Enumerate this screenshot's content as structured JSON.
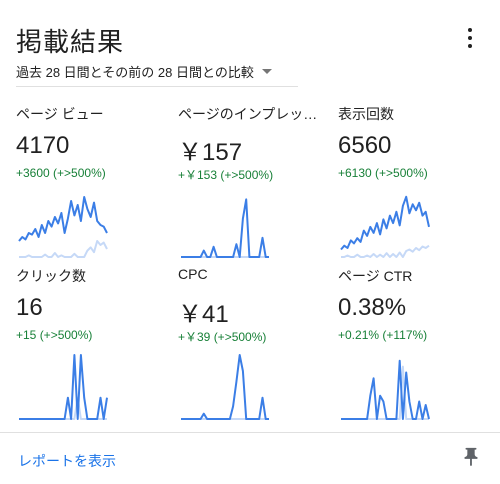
{
  "header": {
    "title": "掲載結果",
    "menu_icon": "more-vert-icon",
    "period_label": "過去 28 日間とその前の 28 日間との比較",
    "caret_icon": "dropdown-caret-icon"
  },
  "colors": {
    "current": "#3b7ee6",
    "previous": "#c6d9f7",
    "delta_positive": "#188038",
    "link": "#1a73e8"
  },
  "metrics": [
    {
      "id": "pageviews",
      "label": "ページ ビュー",
      "value": "4170",
      "delta": "+3600 (+>500%)"
    },
    {
      "id": "impressions_page",
      "label": "ページのインプレッ…",
      "value": "￥157",
      "delta": "+￥153 (+>500%)"
    },
    {
      "id": "impressions",
      "label": "表示回数",
      "value": "6560",
      "delta": "+6130 (+>500%)"
    },
    {
      "id": "clicks",
      "label": "クリック数",
      "value": "16",
      "delta": "+15 (+>500%)"
    },
    {
      "id": "cpc",
      "label": "CPC",
      "value": "￥41",
      "delta": "+￥39 (+>500%)"
    },
    {
      "id": "ctr",
      "label": "ページ CTR",
      "value": "0.38%",
      "delta": "+0.21% (+117%)"
    }
  ],
  "chart_data": [
    {
      "type": "line",
      "title": "",
      "x": [
        1,
        2,
        3,
        4,
        5,
        6,
        7,
        8,
        9,
        10,
        11,
        12,
        13,
        14,
        15,
        16,
        17,
        18,
        19,
        20,
        21,
        22,
        23,
        24,
        25,
        26,
        27,
        28
      ],
      "series": [
        {
          "values": [
            20,
            25,
            22,
            30,
            28,
            35,
            25,
            40,
            30,
            45,
            38,
            50,
            42,
            55,
            30,
            48,
            70,
            52,
            65,
            45,
            75,
            60,
            50,
            68,
            45,
            40,
            38,
            30
          ]
        },
        {
          "values": [
            0,
            0,
            0,
            2,
            0,
            0,
            0,
            0,
            3,
            0,
            0,
            5,
            0,
            2,
            0,
            0,
            0,
            4,
            0,
            0,
            0,
            8,
            12,
            6,
            20,
            15,
            18,
            10
          ]
        }
      ],
      "ylim": [
        0,
        80
      ]
    },
    {
      "type": "line",
      "title": "",
      "x": [
        1,
        2,
        3,
        4,
        5,
        6,
        7,
        8,
        9,
        10,
        11,
        12,
        13,
        14,
        15,
        16,
        17,
        18,
        19,
        20,
        21,
        22,
        23,
        24,
        25,
        26,
        27,
        28
      ],
      "series": [
        {
          "values": [
            0,
            0,
            0,
            0,
            0,
            0,
            0,
            5,
            0,
            0,
            8,
            0,
            0,
            0,
            0,
            0,
            0,
            10,
            0,
            30,
            45,
            0,
            0,
            0,
            0,
            15,
            0,
            0
          ]
        },
        {
          "values": [
            0,
            0,
            0,
            0,
            0,
            0,
            0,
            0,
            0,
            0,
            0,
            0,
            0,
            0,
            0,
            0,
            0,
            0,
            0,
            0,
            0,
            0,
            0,
            0,
            0,
            0,
            0,
            0
          ]
        }
      ],
      "ylim": [
        0,
        50
      ]
    },
    {
      "type": "line",
      "title": "",
      "x": [
        1,
        2,
        3,
        4,
        5,
        6,
        7,
        8,
        9,
        10,
        11,
        12,
        13,
        14,
        15,
        16,
        17,
        18,
        19,
        20,
        21,
        22,
        23,
        24,
        25,
        26,
        27,
        28
      ],
      "series": [
        {
          "values": [
            10,
            15,
            12,
            22,
            18,
            25,
            20,
            35,
            28,
            40,
            32,
            45,
            30,
            50,
            38,
            55,
            45,
            60,
            42,
            68,
            80,
            58,
            70,
            62,
            72,
            55,
            60,
            40
          ]
        },
        {
          "values": [
            0,
            0,
            2,
            0,
            0,
            3,
            0,
            0,
            2,
            0,
            4,
            0,
            3,
            0,
            5,
            0,
            4,
            0,
            6,
            0,
            8,
            10,
            7,
            12,
            9,
            14,
            12,
            15
          ]
        }
      ],
      "ylim": [
        0,
        85
      ]
    },
    {
      "type": "line",
      "title": "",
      "x": [
        1,
        2,
        3,
        4,
        5,
        6,
        7,
        8,
        9,
        10,
        11,
        12,
        13,
        14,
        15,
        16,
        17,
        18,
        19,
        20,
        21,
        22,
        23,
        24,
        25,
        26,
        27,
        28
      ],
      "series": [
        {
          "values": [
            0,
            0,
            0,
            0,
            0,
            0,
            0,
            0,
            0,
            0,
            0,
            0,
            0,
            0,
            0,
            1,
            0,
            3,
            0,
            3,
            1,
            0,
            0,
            0,
            0,
            1,
            0,
            1
          ]
        },
        {
          "values": [
            0,
            0,
            0,
            0,
            0,
            0,
            0,
            0,
            0,
            0,
            0,
            0,
            0,
            0,
            0,
            0,
            0,
            0,
            1,
            0,
            0,
            0,
            0,
            0,
            0,
            0,
            0,
            0
          ]
        }
      ],
      "ylim": [
        0,
        3
      ]
    },
    {
      "type": "line",
      "title": "",
      "x": [
        1,
        2,
        3,
        4,
        5,
        6,
        7,
        8,
        9,
        10,
        11,
        12,
        13,
        14,
        15,
        16,
        17,
        18,
        19,
        20,
        21,
        22,
        23,
        24,
        25,
        26,
        27,
        28
      ],
      "series": [
        {
          "values": [
            0,
            0,
            0,
            0,
            0,
            0,
            0,
            5,
            0,
            0,
            0,
            0,
            0,
            0,
            0,
            0,
            12,
            35,
            60,
            45,
            0,
            0,
            0,
            0,
            0,
            20,
            0,
            0
          ]
        },
        {
          "values": [
            0,
            0,
            0,
            0,
            0,
            0,
            0,
            0,
            0,
            0,
            0,
            0,
            0,
            0,
            0,
            0,
            0,
            0,
            0,
            0,
            0,
            0,
            0,
            0,
            0,
            0,
            0,
            0
          ]
        }
      ],
      "ylim": [
        0,
        60
      ]
    },
    {
      "type": "line",
      "title": "",
      "x": [
        1,
        2,
        3,
        4,
        5,
        6,
        7,
        8,
        9,
        10,
        11,
        12,
        13,
        14,
        15,
        16,
        17,
        18,
        19,
        20,
        21,
        22,
        23,
        24,
        25,
        26,
        27,
        28
      ],
      "series": [
        {
          "values": [
            0,
            0,
            0,
            0,
            0,
            0,
            0,
            0,
            0,
            20,
            35,
            0,
            20,
            15,
            0,
            0,
            0,
            0,
            50,
            0,
            40,
            15,
            0,
            0,
            15,
            0,
            12,
            0
          ]
        },
        {
          "values": [
            0,
            0,
            0,
            0,
            0,
            0,
            0,
            0,
            0,
            0,
            0,
            0,
            0,
            0,
            0,
            0,
            0,
            0,
            0,
            45,
            0,
            0,
            0,
            0,
            0,
            0,
            0,
            0
          ]
        }
      ],
      "ylim": [
        0,
        55
      ]
    }
  ],
  "footer": {
    "report_link": "レポートを表示",
    "pin_icon": "pin-icon"
  }
}
